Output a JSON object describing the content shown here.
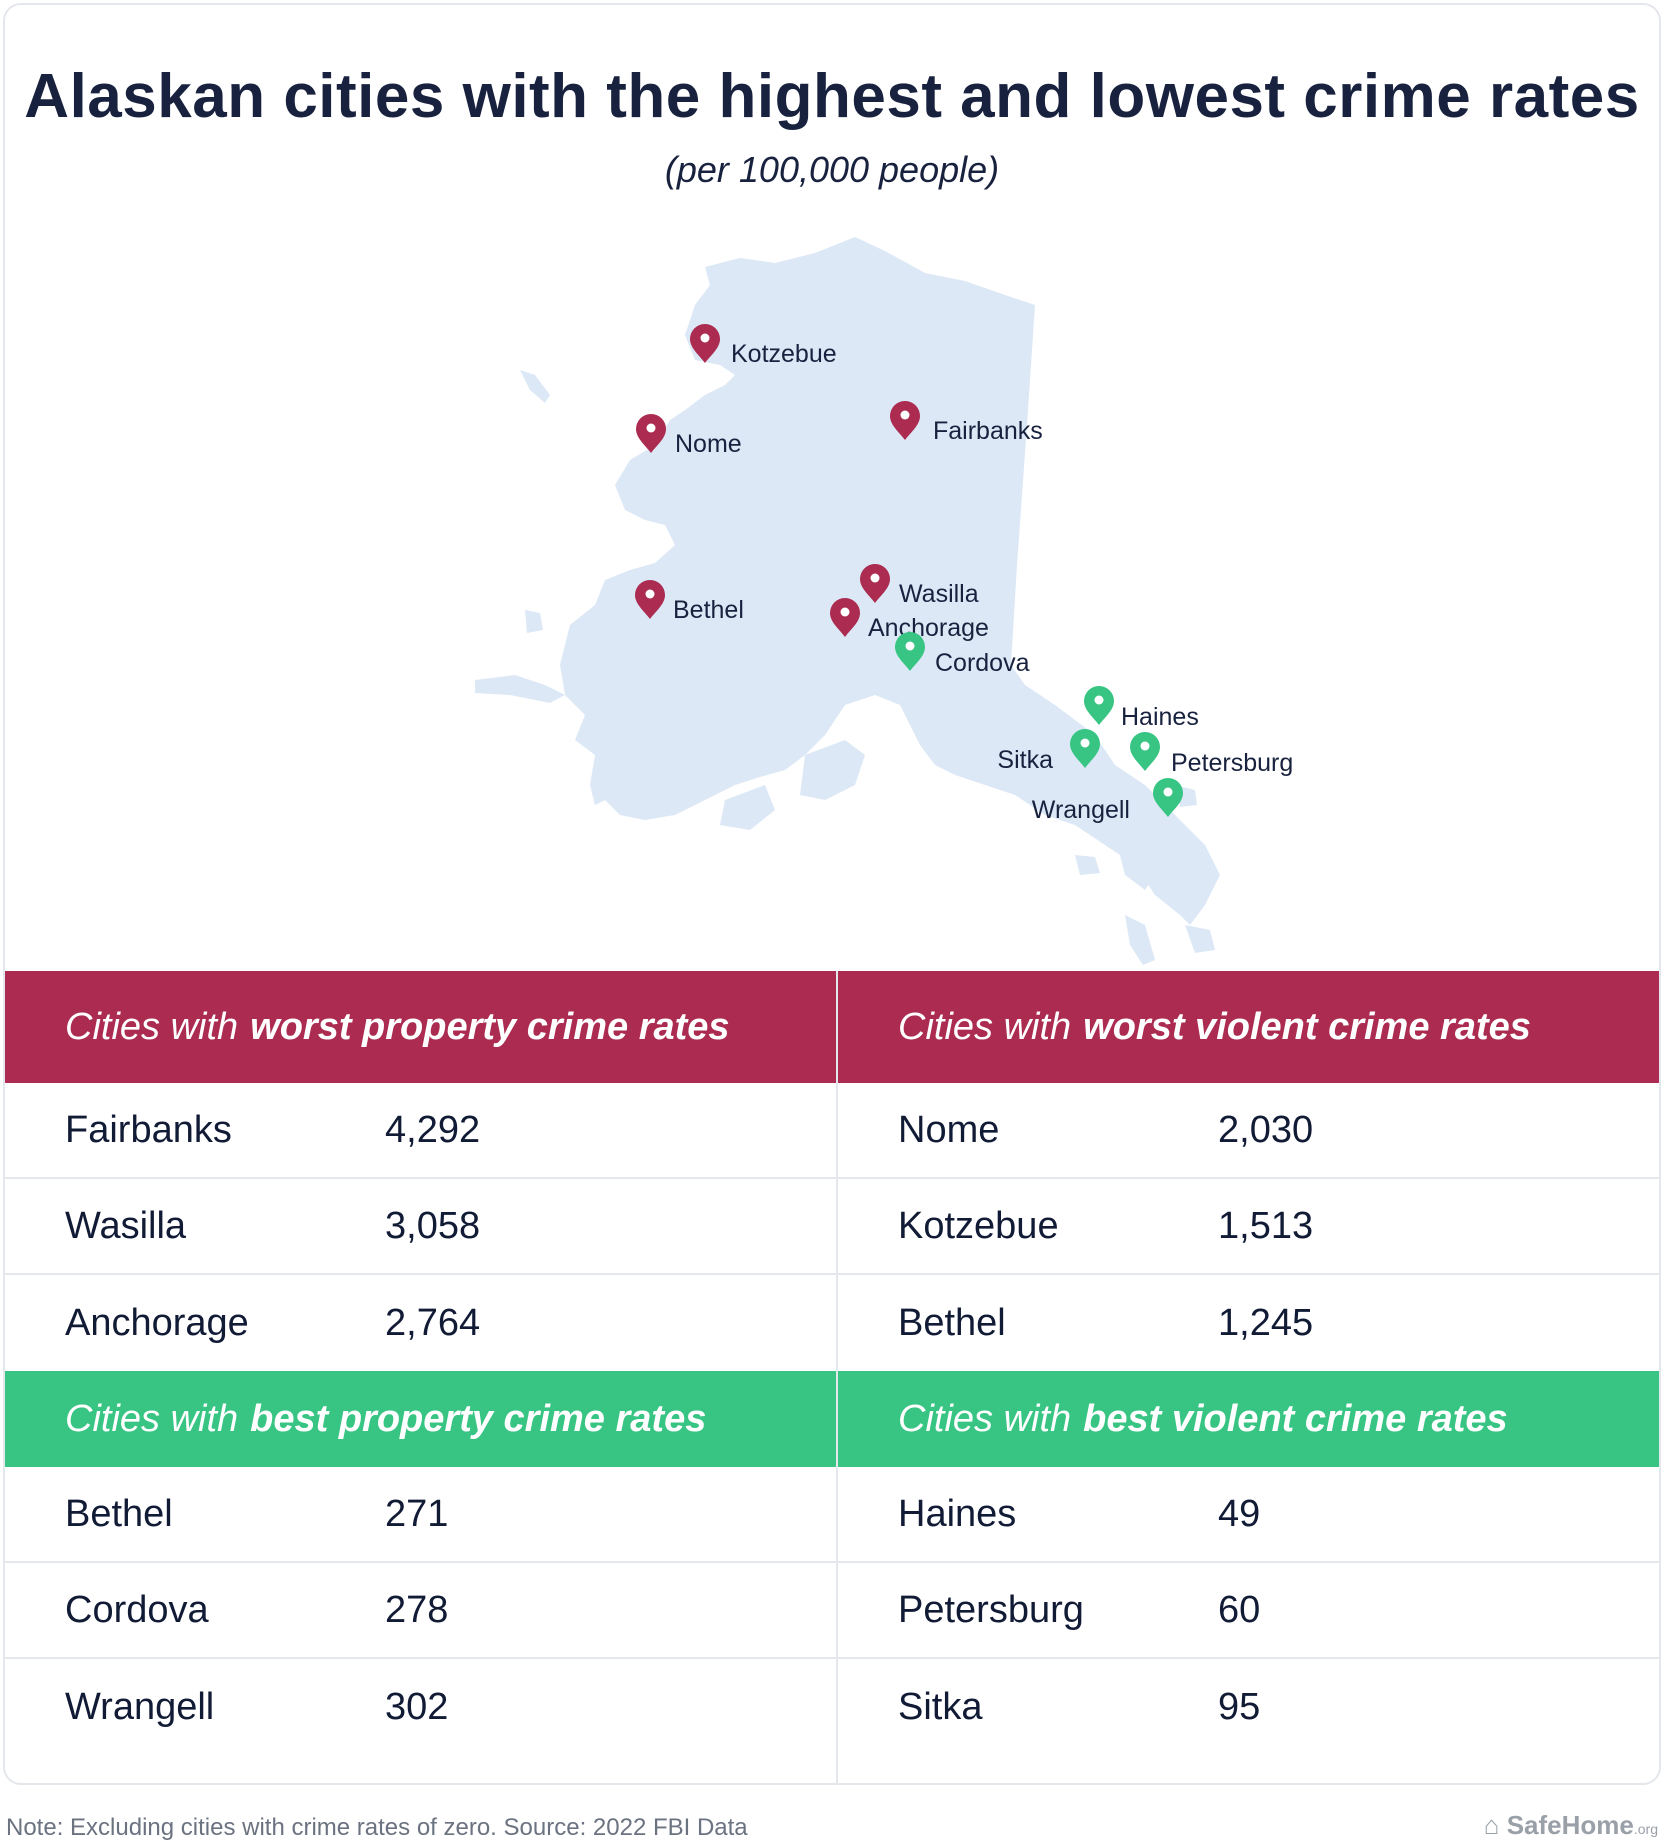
{
  "title": "Alaskan cities with the highest and lowest crime rates",
  "subtitle": "(per 100,000 people)",
  "colors": {
    "worst": "#ab2b51",
    "best": "#38c583",
    "land": "#dce8f6"
  },
  "map": {
    "pins": [
      {
        "name": "Kotzebue",
        "status": "worst"
      },
      {
        "name": "Fairbanks",
        "status": "worst"
      },
      {
        "name": "Nome",
        "status": "worst"
      },
      {
        "name": "Bethel",
        "status": "worst"
      },
      {
        "name": "Wasilla",
        "status": "worst"
      },
      {
        "name": "Anchorage",
        "status": "worst"
      },
      {
        "name": "Cordova",
        "status": "best"
      },
      {
        "name": "Haines",
        "status": "best"
      },
      {
        "name": "Sitka",
        "status": "best"
      },
      {
        "name": "Petersburg",
        "status": "best"
      },
      {
        "name": "Wrangell",
        "status": "best"
      }
    ]
  },
  "tables": {
    "worst_property": {
      "prefix": "Cities with",
      "emphasis": "worst property crime rates",
      "rows": [
        {
          "city": "Fairbanks",
          "value": "4,292"
        },
        {
          "city": "Wasilla",
          "value": "3,058"
        },
        {
          "city": "Anchorage",
          "value": "2,764"
        }
      ]
    },
    "worst_violent": {
      "prefix": "Cities with",
      "emphasis": "worst violent crime rates",
      "rows": [
        {
          "city": "Nome",
          "value": "2,030"
        },
        {
          "city": "Kotzebue",
          "value": "1,513"
        },
        {
          "city": "Bethel",
          "value": "1,245"
        }
      ]
    },
    "best_property": {
      "prefix": "Cities with",
      "emphasis": "best property crime rates",
      "rows": [
        {
          "city": "Bethel",
          "value": "271"
        },
        {
          "city": "Cordova",
          "value": "278"
        },
        {
          "city": "Wrangell",
          "value": "302"
        }
      ]
    },
    "best_violent": {
      "prefix": "Cities with",
      "emphasis": "best violent crime rates",
      "rows": [
        {
          "city": "Haines",
          "value": "49"
        },
        {
          "city": "Petersburg",
          "value": "60"
        },
        {
          "city": "Sitka",
          "value": "95"
        }
      ]
    }
  },
  "footer": {
    "note": "Note: Excluding cities with crime rates of zero. Source: 2022 FBI Data",
    "brand": "SafeHome",
    "brand_suffix": ".org"
  }
}
